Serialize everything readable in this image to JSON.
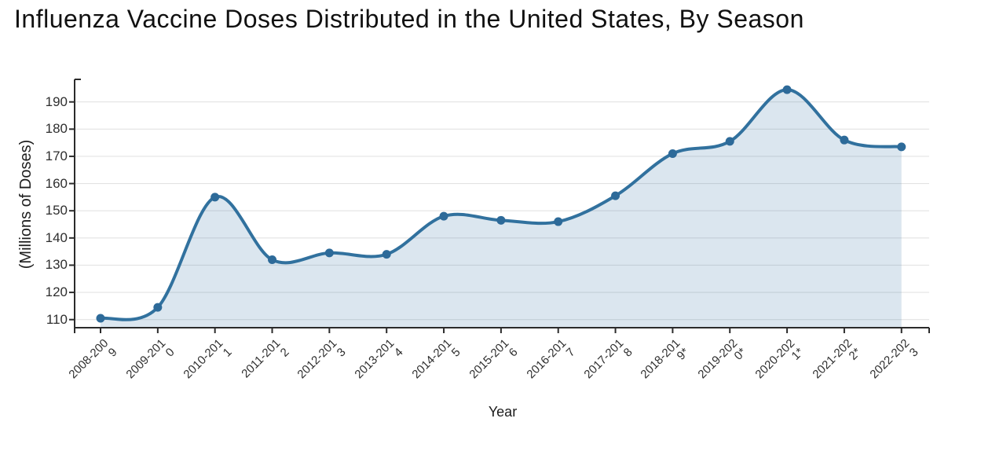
{
  "page": {
    "title": "Influenza Vaccine Doses Distributed in the United States, By Season"
  },
  "chart_data": {
    "type": "area",
    "title": "Influenza Vaccine Doses Distributed in the United States, By Season",
    "categories": [
      "2008-2009",
      "2009-2010",
      "2010-2011",
      "2011-2012",
      "2012-2013",
      "2013-2014",
      "2014-2015",
      "2015-2016",
      "2016-2017",
      "2017-2018",
      "2018-2019*",
      "2019-2020*",
      "2020-2021*",
      "2021-2022*",
      "2022-2023"
    ],
    "values": [
      110.5,
      114.5,
      155,
      132,
      134.5,
      134,
      148,
      146.5,
      146,
      155.5,
      171,
      175.5,
      194.5,
      176,
      173.5
    ],
    "xlabel": "Year",
    "ylabel": "(Millions of Doses)",
    "yticks": [
      110,
      120,
      130,
      140,
      150,
      160,
      170,
      180,
      190
    ],
    "ylim": [
      107,
      198
    ],
    "grid": "horizontal",
    "legend": "none",
    "colors": {
      "line": "#31719e",
      "marker": "#2d6a99",
      "fill": "rgba(53,116,166,0.18)",
      "gridline": "#e3e3e3",
      "axis": "#2b2b2b",
      "text": "#2e2e2e"
    }
  }
}
